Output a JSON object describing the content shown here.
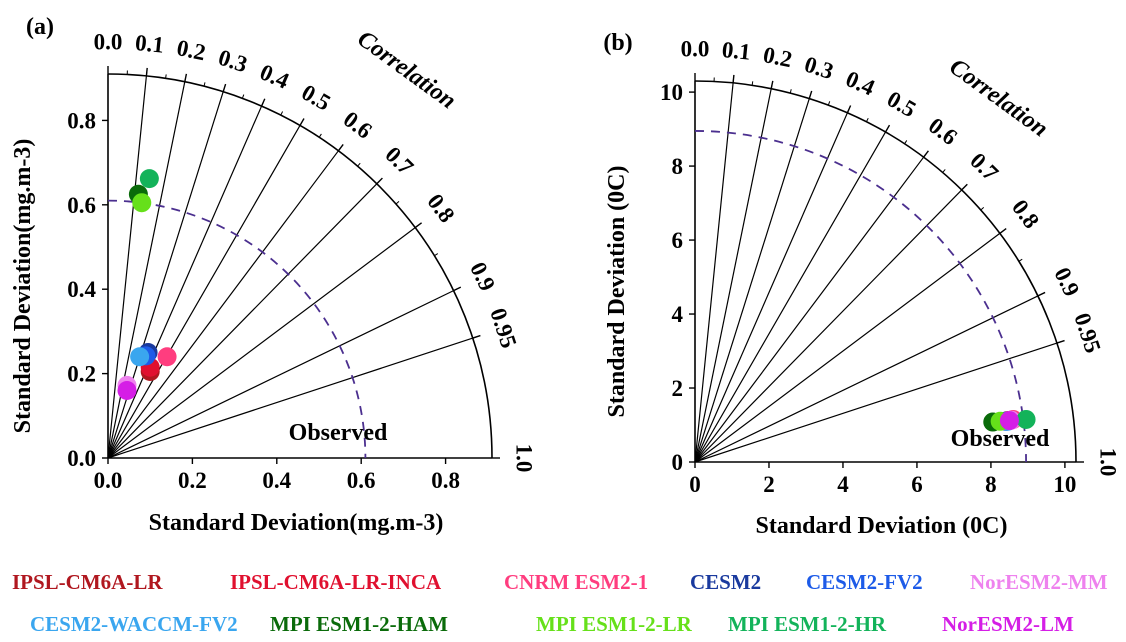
{
  "chart_data": [
    {
      "type": "scatter",
      "panel_label": "(a)",
      "subtype": "taylor-diagram",
      "xlabel": "Standard Deviation(mg.m-3)",
      "ylabel": "Standard Deviation(mg.m-3)",
      "x_ticks": [
        "0.0",
        "0.2",
        "0.4",
        "0.6",
        "0.8"
      ],
      "y_ticks": [
        "0.0",
        "0.2",
        "0.4",
        "0.6",
        "0.8"
      ],
      "std_max": 0.91,
      "correlation_label": "Correlation",
      "correlation_ticks": [
        "0.0",
        "0.1",
        "0.2",
        "0.3",
        "0.4",
        "0.5",
        "0.6",
        "0.7",
        "0.8",
        "0.9",
        "0.95",
        "1.0"
      ],
      "observed_label": "Observed",
      "observed_std": 0.61,
      "points": [
        {
          "model": "IPSL-CM6A-LR",
          "x": 0.1,
          "y": 0.205
        },
        {
          "model": "IPSL-CM6A-LR-INCA",
          "x": 0.1,
          "y": 0.215
        },
        {
          "model": "CNRM ESM2-1",
          "x": 0.14,
          "y": 0.24
        },
        {
          "model": "CESM2",
          "x": 0.095,
          "y": 0.25
        },
        {
          "model": "CESM2-FV2",
          "x": 0.09,
          "y": 0.242
        },
        {
          "model": "NorESM2-MM",
          "x": 0.045,
          "y": 0.172
        },
        {
          "model": "CESM2-WACCM-FV2",
          "x": 0.075,
          "y": 0.24
        },
        {
          "model": "MPI ESM1-2-HAM",
          "x": 0.072,
          "y": 0.625
        },
        {
          "model": "MPI ESM1-2-LR",
          "x": 0.08,
          "y": 0.605
        },
        {
          "model": "MPI ESM1-2-HR",
          "x": 0.098,
          "y": 0.662
        },
        {
          "model": "NorESM2-LM",
          "x": 0.045,
          "y": 0.16
        }
      ]
    },
    {
      "type": "scatter",
      "panel_label": "(b)",
      "subtype": "taylor-diagram",
      "xlabel": "Standard Deviation (0C)",
      "ylabel": "Standard Deviation (0C)",
      "x_ticks": [
        "0",
        "2",
        "4",
        "6",
        "8",
        "10"
      ],
      "y_ticks": [
        "0",
        "2",
        "4",
        "6",
        "8",
        "10"
      ],
      "std_max": 10.3,
      "correlation_label": "Correlation",
      "correlation_ticks": [
        "0.0",
        "0.1",
        "0.2",
        "0.3",
        "0.4",
        "0.5",
        "0.6",
        "0.7",
        "0.8",
        "0.9",
        "0.95",
        "1.0"
      ],
      "observed_label": "Observed",
      "observed_std": 8.95,
      "points": [
        {
          "model": "IPSL-CM6A-LR",
          "x": 8.45,
          "y": 1.12
        },
        {
          "model": "IPSL-CM6A-LR-INCA",
          "x": 8.5,
          "y": 1.12
        },
        {
          "model": "CNRM ESM2-1",
          "x": 8.6,
          "y": 1.15
        },
        {
          "model": "CESM2",
          "x": 8.4,
          "y": 1.1
        },
        {
          "model": "CESM2-FV2",
          "x": 8.42,
          "y": 1.1
        },
        {
          "model": "NorESM2-MM",
          "x": 8.55,
          "y": 1.13
        },
        {
          "model": "CESM2-WACCM-FV2",
          "x": 8.45,
          "y": 1.1
        },
        {
          "model": "MPI ESM1-2-HAM",
          "x": 8.05,
          "y": 1.08
        },
        {
          "model": "MPI ESM1-2-LR",
          "x": 8.25,
          "y": 1.1
        },
        {
          "model": "MPI ESM1-2-HR",
          "x": 8.95,
          "y": 1.15
        },
        {
          "model": "NorESM2-LM",
          "x": 8.5,
          "y": 1.12
        }
      ]
    }
  ],
  "legend": [
    {
      "name": "IPSL-CM6A-LR",
      "color": "#b0171f"
    },
    {
      "name": "IPSL-CM6A-LR-INCA",
      "color": "#e0102f"
    },
    {
      "name": "CNRM ESM2-1",
      "color": "#ff3d7f"
    },
    {
      "name": "CESM2",
      "color": "#1a3a9e"
    },
    {
      "name": "CESM2-FV2",
      "color": "#1d5be8"
    },
    {
      "name": "NorESM2-MM",
      "color": "#ee82ee"
    },
    {
      "name": "CESM2-WACCM-FV2",
      "color": "#3aa6ef"
    },
    {
      "name": "MPI ESM1-2-HAM",
      "color": "#0a6b0a"
    },
    {
      "name": "MPI ESM1-2-LR",
      "color": "#66e01a"
    },
    {
      "name": "MPI ESM1-2-HR",
      "color": "#13b35a"
    },
    {
      "name": "NorESM2-LM",
      "color": "#d51ee6"
    }
  ],
  "observed_line_color": "#4b2f8f"
}
